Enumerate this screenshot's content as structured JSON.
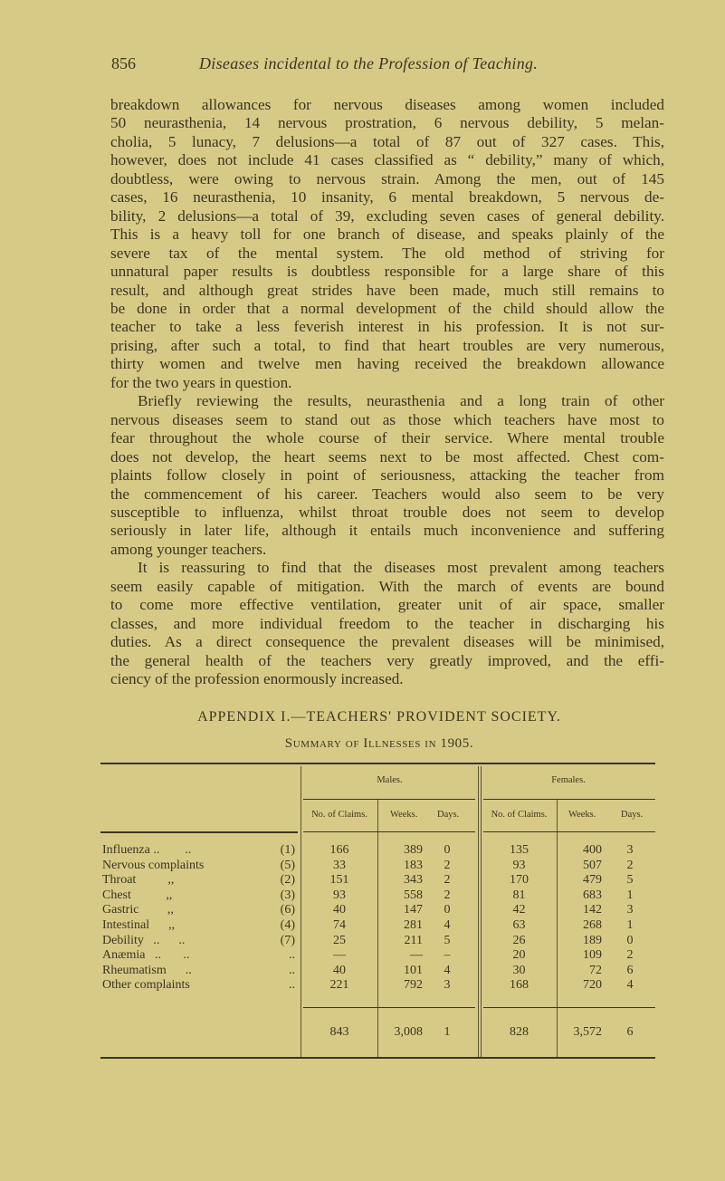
{
  "header": {
    "page_number": "856",
    "running_title": "Diseases incidental to the Profession of Teaching."
  },
  "paragraphs": [
    {
      "lines": [
        "breakdown allowances for nervous diseases among women included",
        "50 neurasthenia, 14 nervous prostration, 6 nervous debility, 5 melan-",
        "cholia, 5 lunacy, 7 delusions—a total of 87 out of 327 cases. This,",
        "however, does not include 41 cases classified as “ debility,” many of which,",
        "doubtless, were owing to nervous strain. Among the men, out of 145",
        "cases, 16 neurasthenia, 10 insanity, 6 mental breakdown, 5 nervous de-",
        "bility, 2 delusions—a total of 39, excluding seven cases of general debility.",
        "This is a heavy toll for one branch of disease, and speaks plainly of the",
        "severe tax of the mental system. The old method of striving for",
        "unnatural paper results is doubtless responsible for a large share of this",
        "result, and although great strides have been made, much still remains to",
        "be done in order that a normal development of the child should allow the",
        "teacher to take a less feverish interest in his profession. It is not sur-",
        "prising, after such a total, to find that heart troubles are very numerous,",
        "thirty women and twelve men having received the breakdown allowance",
        "for the two years in question."
      ]
    },
    {
      "lines": [
        "Briefly reviewing the results, neurasthenia and a long train of other",
        "nervous diseases seem to stand out as those which teachers have most to",
        "fear throughout the whole course of their service. Where mental trouble",
        "does not develop, the heart seems next to be most affected. Chest com-",
        "plaints follow closely in point of seriousness, attacking the teacher from",
        "the commencement of his career. Teachers would also seem to be very",
        "susceptible to influenza, whilst throat trouble does not seem to develop",
        "seriously in later life, although it entails much inconvenience and suffering",
        "among younger teachers."
      ]
    },
    {
      "lines": [
        "It is reassuring to find that the diseases most prevalent among teachers",
        "seem easily capable of mitigation. With the march of events are bound",
        "to come more effective ventilation, greater unit of air space, smaller",
        "classes, and more individual freedom to the teacher in discharging his",
        "duties. As a direct consequence the prevalent diseases will be minimised,",
        "the general health of the teachers very greatly improved, and the effi-",
        "ciency of the profession enormously increased."
      ]
    }
  ],
  "appendix": {
    "title": "APPENDIX I.—TEACHERS' PROVIDENT SOCIETY.",
    "subtitle": "Summary of Illnesses in 1905."
  },
  "table": {
    "groups": [
      "Males.",
      "Females."
    ],
    "columns": [
      "No. of Claims.",
      "Weeks.",
      "Days.",
      "No. of Claims.",
      "Weeks.",
      "Days."
    ],
    "rows": [
      {
        "label": "Influenza ..        ..",
        "code": "(1)",
        "m_claims": "166",
        "m_weeks": "389",
        "m_days": "0",
        "f_claims": "135",
        "f_weeks": "400",
        "f_days": "3"
      },
      {
        "label": "Nervous complaints",
        "code": "(5)",
        "m_claims": "33",
        "m_weeks": "183",
        "m_days": "2",
        "f_claims": "93",
        "f_weeks": "507",
        "f_days": "2"
      },
      {
        "label": "Throat          ,,",
        "code": "(2)",
        "m_claims": "151",
        "m_weeks": "343",
        "m_days": "2",
        "f_claims": "170",
        "f_weeks": "479",
        "f_days": "5"
      },
      {
        "label": "Chest           ,,",
        "code": "(3)",
        "m_claims": "93",
        "m_weeks": "558",
        "m_days": "2",
        "f_claims": "81",
        "f_weeks": "683",
        "f_days": "1"
      },
      {
        "label": "Gastric         ,,",
        "code": "(6)",
        "m_claims": "40",
        "m_weeks": "147",
        "m_days": "0",
        "f_claims": "42",
        "f_weeks": "142",
        "f_days": "3"
      },
      {
        "label": "Intestinal      ,,",
        "code": "(4)",
        "m_claims": "74",
        "m_weeks": "281",
        "m_days": "4",
        "f_claims": "63",
        "f_weeks": "268",
        "f_days": "1"
      },
      {
        "label": "Debility   ..      ..",
        "code": "(7)",
        "m_claims": "25",
        "m_weeks": "211",
        "m_days": "5",
        "f_claims": "26",
        "f_weeks": "189",
        "f_days": "0"
      },
      {
        "label": "Anæmia   ..       ..",
        "code": "..",
        "m_claims": "—",
        "m_weeks": "—",
        "m_days": "–",
        "f_claims": "20",
        "f_weeks": "109",
        "f_days": "2"
      },
      {
        "label": "Rheumatism      ..",
        "code": "..",
        "m_claims": "40",
        "m_weeks": "101",
        "m_days": "4",
        "f_claims": "30",
        "f_weeks": "72",
        "f_days": "6"
      },
      {
        "label": "Other complaints",
        "code": "..",
        "m_claims": "221",
        "m_weeks": "792",
        "m_days": "3",
        "f_claims": "168",
        "f_weeks": "720",
        "f_days": "4"
      }
    ],
    "totals": {
      "m_claims": "843",
      "m_weeks": "3,008",
      "m_days": "1",
      "f_claims": "828",
      "f_weeks": "3,572",
      "f_days": "6"
    }
  }
}
